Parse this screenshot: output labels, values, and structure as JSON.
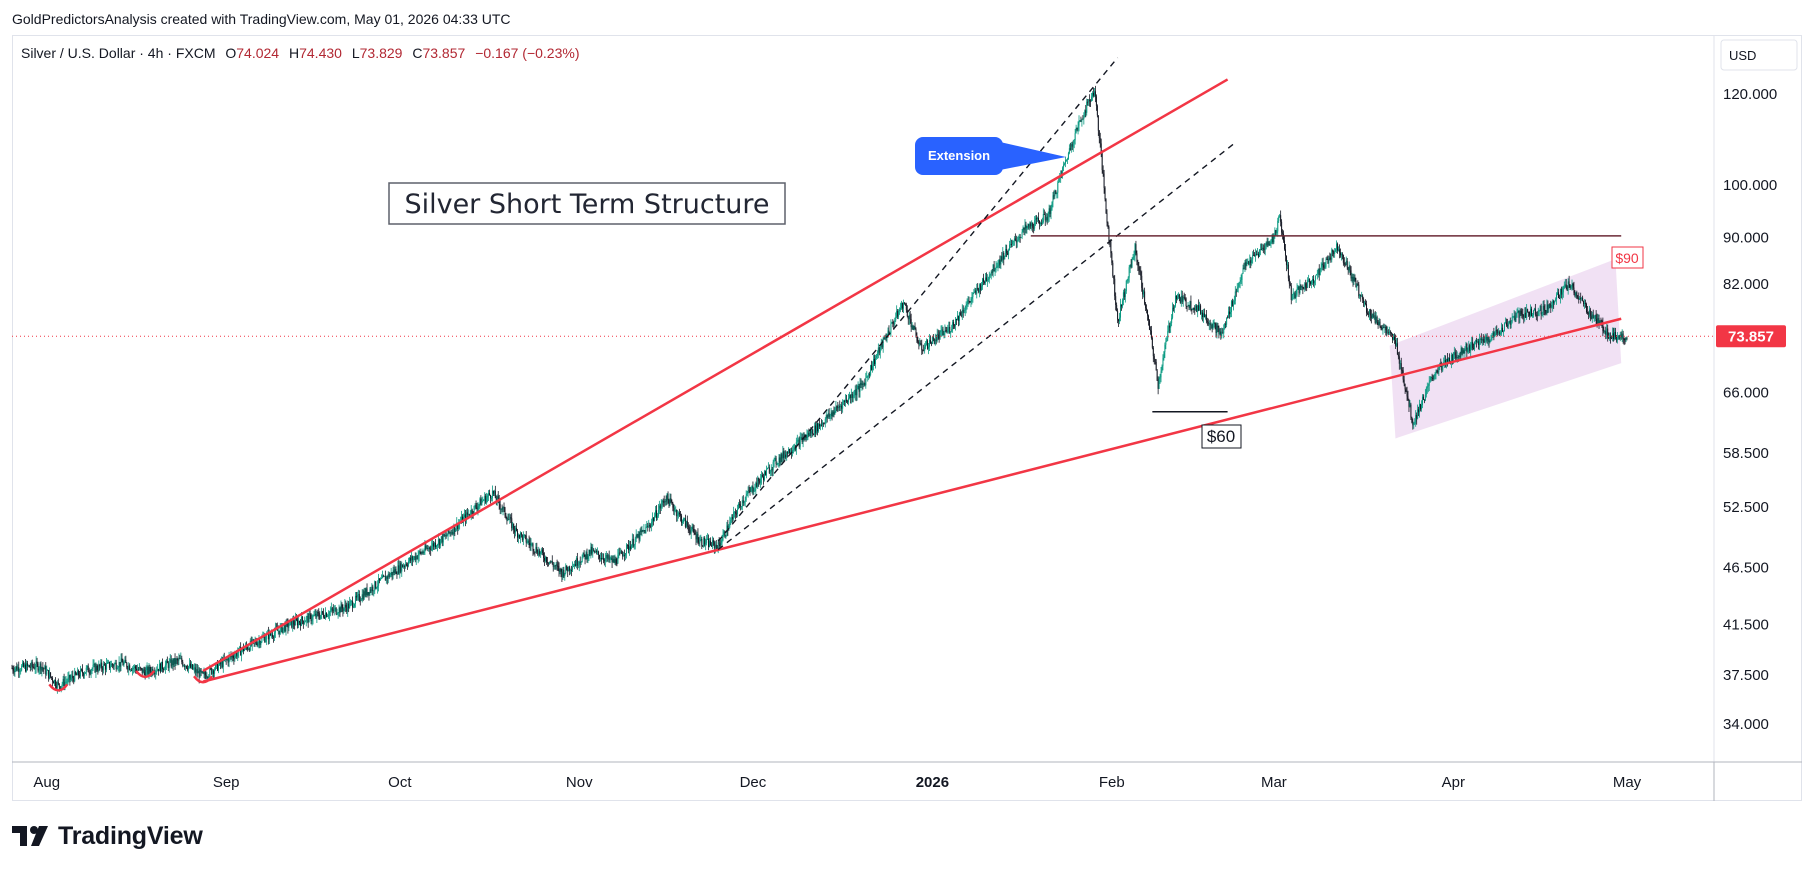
{
  "header": {
    "credit": "GoldPredictorsAnalysis created with TradingView.com, May 01, 2026 04:33 UTC"
  },
  "legend": {
    "symbol": "Silver / U.S. Dollar · 4h · FXCM",
    "open_label": "O",
    "open": "74.024",
    "high_label": "H",
    "high": "74.430",
    "low_label": "L",
    "low": "73.829",
    "close_label": "C",
    "close": "73.857",
    "change": "−0.167 (−0.23%)"
  },
  "currency": "USD",
  "annotations": {
    "title": "Silver Short Term Structure",
    "callout": "Extension",
    "level_90": "$90",
    "level_60": "$60"
  },
  "colors": {
    "red": "#f23645",
    "purple": "#9c27b0",
    "callout": "#2962ff",
    "up": "#089981",
    "down": "#131722",
    "text": "#131722",
    "axis_text": "#131722"
  },
  "branding": {
    "logo": "TradingView",
    "logo_icon": "tradingview-logo-icon"
  },
  "chart_data": {
    "type": "candlestick",
    "symbol": "Silver / U.S. Dollar",
    "timeframe": "4h",
    "y_scale": "log",
    "ylim": [
      31.5,
      135
    ],
    "y_ticks": [
      120,
      100,
      90,
      82,
      66,
      58.5,
      52.5,
      46.5,
      41.5,
      37.5,
      34
    ],
    "y_tick_labels": [
      "120.000",
      "100.000",
      "90.000",
      "82.000",
      "66.000",
      "58.500",
      "52.500",
      "46.500",
      "41.500",
      "37.500",
      "34.000"
    ],
    "last_price": 73.857,
    "last_price_label": "73.857",
    "x_range": [
      "2025-07-26",
      "2026-05-01"
    ],
    "x_ticks": [
      {
        "label": "Aug",
        "date": "2025-08-01",
        "bold": false
      },
      {
        "label": "Sep",
        "date": "2025-09-01",
        "bold": false
      },
      {
        "label": "Oct",
        "date": "2025-10-01",
        "bold": false
      },
      {
        "label": "Nov",
        "date": "2025-11-01",
        "bold": false
      },
      {
        "label": "Dec",
        "date": "2025-12-01",
        "bold": false
      },
      {
        "label": "2026",
        "date": "2026-01-01",
        "bold": true
      },
      {
        "label": "Feb",
        "date": "2026-02-01",
        "bold": false
      },
      {
        "label": "Mar",
        "date": "2026-03-01",
        "bold": false
      },
      {
        "label": "Apr",
        "date": "2026-04-01",
        "bold": false
      },
      {
        "label": "May",
        "date": "2026-05-01",
        "bold": false
      }
    ],
    "price_path": [
      [
        "2025-07-26",
        38.0
      ],
      [
        "2025-07-31",
        38.2
      ],
      [
        "2025-08-03",
        36.7
      ],
      [
        "2025-08-08",
        37.9
      ],
      [
        "2025-08-14",
        38.4
      ],
      [
        "2025-08-18",
        37.7
      ],
      [
        "2025-08-24",
        38.6
      ],
      [
        "2025-08-28",
        37.4
      ],
      [
        "2025-09-04",
        39.5
      ],
      [
        "2025-09-12",
        41.5
      ],
      [
        "2025-09-22",
        43.0
      ],
      [
        "2025-10-01",
        46.5
      ],
      [
        "2025-10-09",
        49.5
      ],
      [
        "2025-10-15",
        53.0
      ],
      [
        "2025-10-17",
        54.0
      ],
      [
        "2025-10-21",
        50.0
      ],
      [
        "2025-10-25",
        48.0
      ],
      [
        "2025-10-29",
        46.0
      ],
      [
        "2025-11-03",
        48.0
      ],
      [
        "2025-11-07",
        47.0
      ],
      [
        "2025-11-13",
        50.5
      ],
      [
        "2025-11-16",
        53.5
      ],
      [
        "2025-11-19",
        51.0
      ],
      [
        "2025-11-22",
        49.0
      ],
      [
        "2025-11-25",
        48.5
      ],
      [
        "2025-11-29",
        53.0
      ],
      [
        "2025-12-05",
        57.5
      ],
      [
        "2025-12-12",
        61.5
      ],
      [
        "2025-12-20",
        67.0
      ],
      [
        "2025-12-27",
        79.0
      ],
      [
        "2025-12-30",
        72.0
      ],
      [
        "2026-01-04",
        75.0
      ],
      [
        "2026-01-08",
        80.0
      ],
      [
        "2026-01-13",
        86.5
      ],
      [
        "2026-01-17",
        91.5
      ],
      [
        "2026-01-21",
        94.0
      ],
      [
        "2026-01-26",
        112.0
      ],
      [
        "2026-01-29",
        121.0
      ],
      [
        "2026-01-31",
        95.0
      ],
      [
        "2026-02-02",
        76.0
      ],
      [
        "2026-02-05",
        88.0
      ],
      [
        "2026-02-09",
        67.0
      ],
      [
        "2026-02-12",
        80.0
      ],
      [
        "2026-02-16",
        78.0
      ],
      [
        "2026-02-20",
        74.0
      ],
      [
        "2026-02-24",
        85.0
      ],
      [
        "2026-03-01",
        90.0
      ],
      [
        "2026-03-02",
        94.0
      ],
      [
        "2026-03-04",
        80.0
      ],
      [
        "2026-03-08",
        83.0
      ],
      [
        "2026-03-12",
        88.5
      ],
      [
        "2026-03-17",
        78.0
      ],
      [
        "2026-03-22",
        73.0
      ],
      [
        "2026-03-25",
        62.0
      ],
      [
        "2026-03-29",
        69.0
      ],
      [
        "2026-04-03",
        72.0
      ],
      [
        "2026-04-08",
        74.0
      ],
      [
        "2026-04-12",
        77.0
      ],
      [
        "2026-04-17",
        78.0
      ],
      [
        "2026-04-21",
        82.0
      ],
      [
        "2026-04-24",
        78.0
      ],
      [
        "2026-04-28",
        74.0
      ],
      [
        "2026-05-01",
        73.857
      ]
    ],
    "drawings": {
      "upper_red_trendline": [
        [
          "2025-08-28",
          37.8
        ],
        [
          "2026-02-21",
          123.5
        ]
      ],
      "lower_red_trendline": [
        [
          "2025-08-28",
          37.0
        ],
        [
          "2026-04-30",
          76.5
        ]
      ],
      "dashed_channel_upper": [
        [
          "2025-11-25",
          49.0
        ],
        [
          "2026-02-02",
          129.0
        ]
      ],
      "dashed_channel_lower": [
        [
          "2025-11-25",
          48.2
        ],
        [
          "2026-02-22",
          108.5
        ]
      ],
      "resistance_90": [
        [
          "2026-01-18",
          90.3
        ],
        [
          "2026-04-30",
          90.3
        ]
      ],
      "support_60": [
        [
          "2026-02-08",
          63.5
        ],
        [
          "2026-02-21",
          63.5
        ]
      ],
      "purple_channel": [
        [
          "2026-03-21",
          72.5
        ],
        [
          "2026-04-29",
          86.2
        ],
        [
          "2026-04-30",
          70.0
        ],
        [
          "2026-03-22",
          60.2
        ]
      ]
    }
  }
}
